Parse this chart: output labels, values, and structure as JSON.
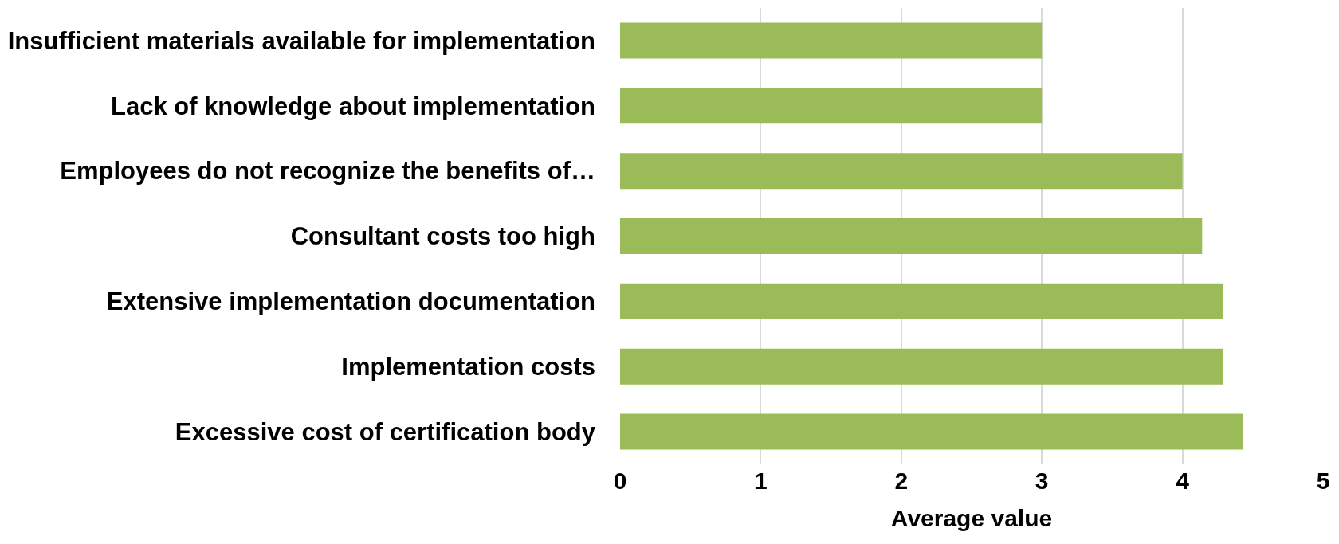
{
  "chart_data": {
    "type": "bar",
    "orientation": "horizontal",
    "xlabel": "Average value",
    "categories": [
      "Insufficient materials available for implementation",
      "Lack of knowledge about implementation",
      "Employees do not recognize the benefits of…",
      "Consultant costs too high",
      "Extensive implementation documentation",
      "Implementation costs",
      "Excessive cost of certification body"
    ],
    "values": [
      3,
      3,
      4,
      4.14,
      4.29,
      4.29,
      4.43
    ],
    "color": "#9bbb59",
    "xlim": [
      0,
      5
    ],
    "xticks": [
      0,
      1,
      2,
      3,
      4,
      5
    ],
    "grid": "x",
    "legend": false
  }
}
